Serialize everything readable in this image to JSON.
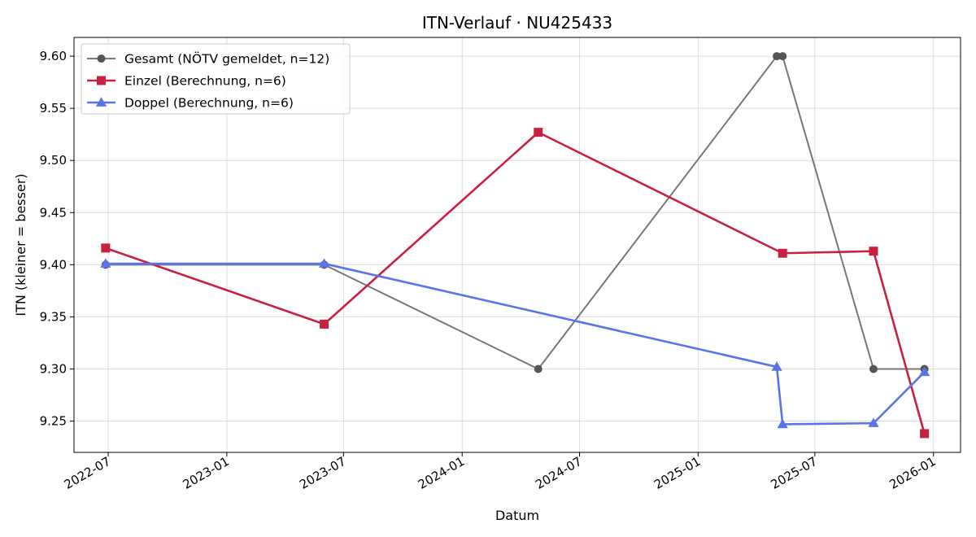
{
  "chart_data": {
    "type": "line",
    "title": "ITN-Verlauf · NU425433",
    "xlabel": "Datum",
    "ylabel": "ITN  (kleiner = besser)",
    "xlim": [
      "2022-05-09",
      "2026-02-12"
    ],
    "ylim": [
      9.22,
      9.618
    ],
    "x_ticks": [
      {
        "date": "2022-07-01",
        "label": "2022-07"
      },
      {
        "date": "2023-01-01",
        "label": "2023-01"
      },
      {
        "date": "2023-07-01",
        "label": "2023-07"
      },
      {
        "date": "2024-01-01",
        "label": "2024-01"
      },
      {
        "date": "2024-07-01",
        "label": "2024-07"
      },
      {
        "date": "2025-01-01",
        "label": "2025-01"
      },
      {
        "date": "2025-07-01",
        "label": "2025-07"
      },
      {
        "date": "2026-01-01",
        "label": "2026-01"
      }
    ],
    "y_ticks": [
      {
        "value": 9.25,
        "label": "9.25"
      },
      {
        "value": 9.3,
        "label": "9.30"
      },
      {
        "value": 9.35,
        "label": "9.35"
      },
      {
        "value": 9.4,
        "label": "9.40"
      },
      {
        "value": 9.45,
        "label": "9.45"
      },
      {
        "value": 9.5,
        "label": "9.50"
      },
      {
        "value": 9.55,
        "label": "9.55"
      },
      {
        "value": 9.6,
        "label": "9.60"
      }
    ],
    "grid": true,
    "legend_position": "top-left",
    "series": [
      {
        "name": "Gesamt (NÖTV gemeldet, n=12)",
        "color": "#777777",
        "marker_color": "#555555",
        "marker": "circle",
        "points": [
          {
            "x": "2022-06-27",
            "y": 9.4
          },
          {
            "x": "2023-06-01",
            "y": 9.4
          },
          {
            "x": "2024-04-28",
            "y": 9.3
          },
          {
            "x": "2025-05-03",
            "y": 9.6
          },
          {
            "x": "2025-05-12",
            "y": 9.6
          },
          {
            "x": "2025-09-30",
            "y": 9.3
          },
          {
            "x": "2025-12-18",
            "y": 9.3
          }
        ]
      },
      {
        "name": "Einzel (Berechnung, n=6)",
        "color": "#c8203f",
        "marker_color": "#c8203f",
        "marker": "square",
        "points": [
          {
            "x": "2022-06-27",
            "y": 9.416
          },
          {
            "x": "2023-06-01",
            "y": 9.343
          },
          {
            "x": "2024-04-28",
            "y": 9.527
          },
          {
            "x": "2025-05-12",
            "y": 9.411
          },
          {
            "x": "2025-09-30",
            "y": 9.413
          },
          {
            "x": "2025-12-18",
            "y": 9.238
          }
        ]
      },
      {
        "name": "Doppel (Berechnung, n=6)",
        "color": "#5b75e8",
        "marker_color": "#5b75e8",
        "marker": "triangle",
        "points": [
          {
            "x": "2022-06-27",
            "y": 9.401
          },
          {
            "x": "2023-06-01",
            "y": 9.401
          },
          {
            "x": "2025-05-03",
            "y": 9.302
          },
          {
            "x": "2025-05-12",
            "y": 9.247
          },
          {
            "x": "2025-09-30",
            "y": 9.248
          },
          {
            "x": "2025-12-18",
            "y": 9.297
          }
        ]
      }
    ]
  }
}
